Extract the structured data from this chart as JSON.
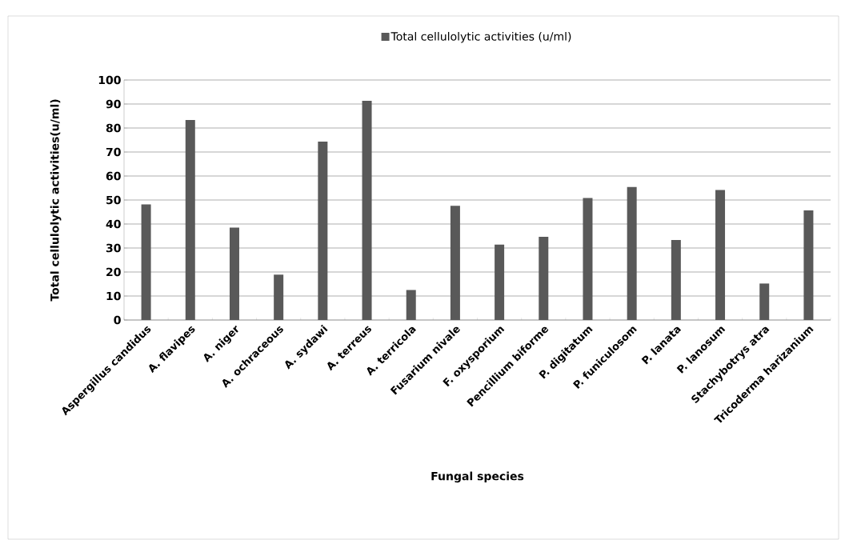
{
  "chart_data": {
    "type": "bar",
    "categories": [
      "Aspergillus candidus",
      "A. flavipes",
      "A. niger",
      "A. ochraceous",
      "A. sydawi",
      "A. terreus",
      "A. terricola",
      "Fusarium nivale",
      "F. oxysporium",
      "Pencillium  biforme",
      "P. digitatum",
      "P. funiculosom",
      "P. lanata",
      "P. lanosum",
      "Stachybotrys atra",
      "Tricoderma harizanium"
    ],
    "series": [
      {
        "name": "Total cellulolytic activities (u/ml)",
        "color": "#595959",
        "values": [
          48.2,
          83.3,
          38.5,
          18.9,
          74.3,
          91.3,
          12.5,
          47.6,
          31.4,
          34.7,
          50.8,
          55.4,
          33.3,
          54.2,
          15.2,
          45.7
        ]
      }
    ],
    "xlabel": "Fungal species",
    "ylabel": "Total cellulolytic activities(u/ml)",
    "ylim": [
      0,
      100
    ],
    "yticks": [
      0,
      10,
      20,
      30,
      40,
      50,
      60,
      70,
      80,
      90,
      100
    ],
    "grid": "y",
    "legend": "top"
  }
}
